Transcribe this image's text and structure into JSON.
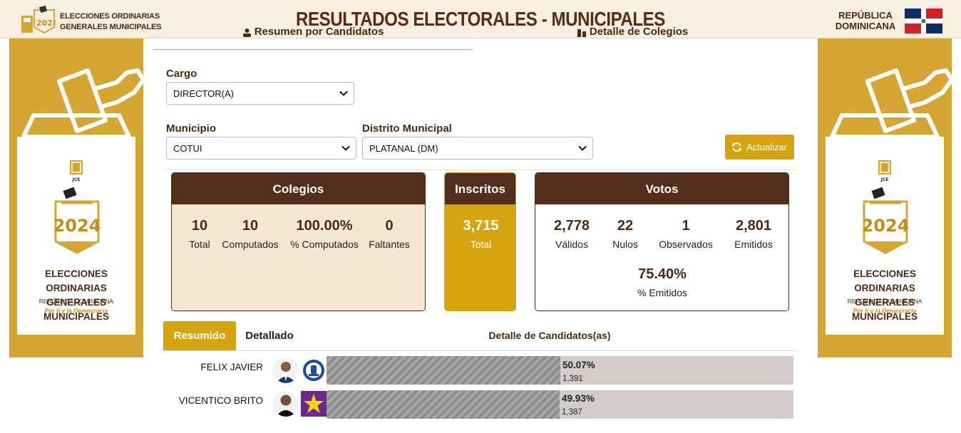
{
  "header": {
    "logo_text_line1": "ELECCIONES ORDINARIAS",
    "logo_text_line2": "GENERALES MUNICIPALES",
    "title": "RESULTADOS ELECTORALES - MUNICIPALES",
    "country_line1": "REPÚBLICA",
    "country_line2": "DOMINICANA"
  },
  "side_banner": {
    "year": "2024",
    "jce": "JCE",
    "line1": "ELECCIONES ORDINARIAS",
    "line2": "GENERALES MUNICIPALES",
    "line3": "REPÚBLICA DOMINICANA",
    "slogan": "Por ti y la Democracia"
  },
  "top_tabs": [
    {
      "label": "Resumen por Candidatos",
      "icon": "person-icon"
    },
    {
      "label": "Detalle de Colegios",
      "icon": "building-icon"
    }
  ],
  "filters": {
    "cargo_label": "Cargo",
    "cargo_value": "DIRECTOR(A)",
    "municipio_label": "Municipio",
    "municipio_value": "COTUI",
    "distrito_label": "Distrito Municipal",
    "distrito_value": "PLATANAL (DM)",
    "update_button": "Actualizar"
  },
  "colegios": {
    "title": "Colegios",
    "stats": [
      {
        "value": "10",
        "label": "Total"
      },
      {
        "value": "10",
        "label": "Computados"
      },
      {
        "value": "100.00%",
        "label": "% Computados"
      },
      {
        "value": "0",
        "label": "Faltantes"
      }
    ]
  },
  "inscritos": {
    "title": "Inscritos",
    "value": "3,715",
    "label": "Total"
  },
  "votos": {
    "title": "Votos",
    "stats": [
      {
        "value": "2,778",
        "label": "Válidos"
      },
      {
        "value": "22",
        "label": "Nulos"
      },
      {
        "value": "1",
        "label": "Observados"
      },
      {
        "value": "2,801",
        "label": "Emitidos"
      }
    ],
    "pct_value": "75.40%",
    "pct_label": "% Emitidos"
  },
  "results_tabs": {
    "active": "Resumido",
    "inactive": "Detallado",
    "title": "Detalle de Candidatos(as)"
  },
  "candidates": [
    {
      "name": "FELIX JAVIER",
      "percent_label": "50.07%",
      "percent": 50.07,
      "votes": "1,391",
      "party_icon": "party-seal-icon"
    },
    {
      "name": "VICENTICO BRITO",
      "percent_label": "49.93%",
      "percent": 49.93,
      "votes": "1,387",
      "party_icon": "party-star-icon"
    }
  ],
  "colors": {
    "brown": "#532e1c",
    "gold": "#d6a40f",
    "banner_gold": "#d6a632",
    "cream": "#f5e8d0"
  }
}
